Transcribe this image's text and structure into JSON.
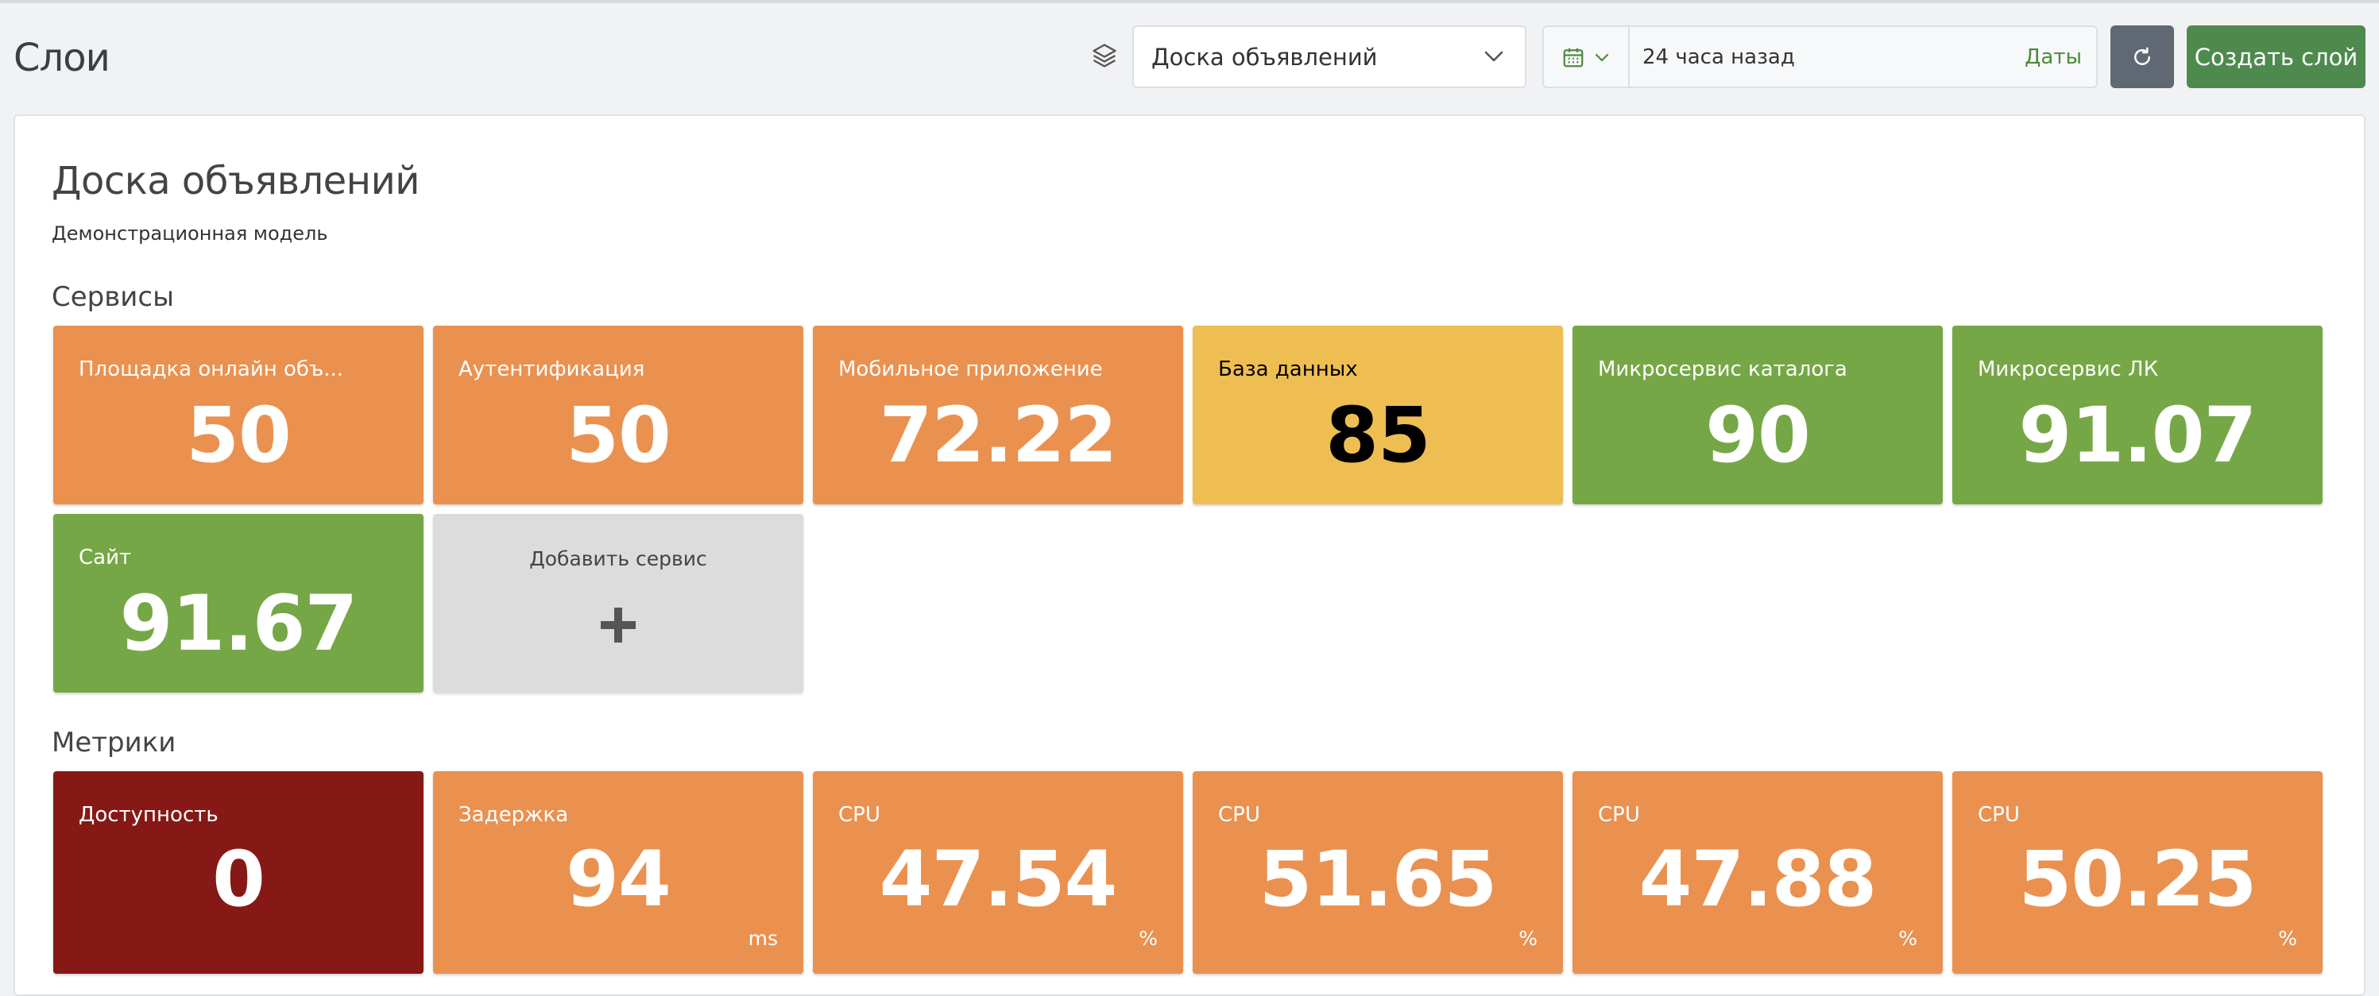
{
  "header": {
    "title": "Слои",
    "layer_select": {
      "value": "Доска объявлений",
      "icon": "chevron-down-icon"
    },
    "date_range": {
      "value": "24 часа назад",
      "link_label": "Даты",
      "icon": "calendar-icon"
    },
    "refresh_icon": "refresh-icon",
    "create_button": "Создать слой"
  },
  "model": {
    "title": "Доска объявлений",
    "subtitle": "Демонстрационная модель"
  },
  "services": {
    "section_title": "Сервисы",
    "items": [
      {
        "label": "Площадка онлайн объ...",
        "value": "50",
        "status": "orange"
      },
      {
        "label": "Аутентификация",
        "value": "50",
        "status": "orange"
      },
      {
        "label": "Мобильное приложение",
        "value": "72.22",
        "status": "orange"
      },
      {
        "label": "База данных",
        "value": "85",
        "status": "yellow"
      },
      {
        "label": "Микросервис каталога",
        "value": "90",
        "status": "green"
      },
      {
        "label": "Микросервис ЛК",
        "value": "91.07",
        "status": "green"
      },
      {
        "label": "Сайт",
        "value": "91.67",
        "status": "green"
      }
    ],
    "add_label": "Добавить сервис"
  },
  "metrics": {
    "section_title": "Метрики",
    "items": [
      {
        "label": "Доступность",
        "value": "0",
        "unit": "",
        "status": "darkred"
      },
      {
        "label": "Задержка",
        "value": "94",
        "unit": "ms",
        "status": "orange"
      },
      {
        "label": "CPU",
        "value": "47.54",
        "unit": "%",
        "status": "orange"
      },
      {
        "label": "CPU",
        "value": "51.65",
        "unit": "%",
        "status": "orange"
      },
      {
        "label": "CPU",
        "value": "47.88",
        "unit": "%",
        "status": "orange"
      },
      {
        "label": "CPU",
        "value": "50.25",
        "unit": "%",
        "status": "orange"
      }
    ]
  },
  "colors": {
    "orange": "#ea9150",
    "yellow": "#efbe52",
    "green": "#76a746",
    "darkred": "#861915",
    "primary": "#4e8a4e",
    "secondary": "#5f6873"
  }
}
